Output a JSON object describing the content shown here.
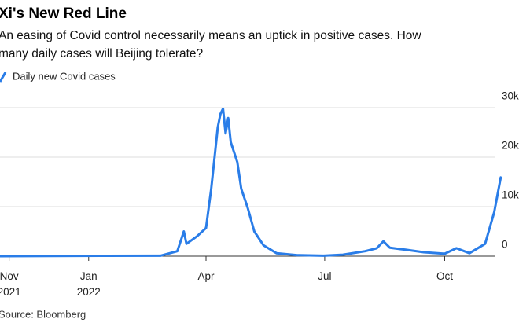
{
  "chart_data": {
    "type": "line",
    "title": "Xi's New Red Line",
    "subtitle": [
      "An easing of Covid control necessarily means an uptick in positive cases. How",
      "many daily cases will Beijing tolerate?"
    ],
    "source": "Source: Bloomberg",
    "x": [
      "2021-10-25",
      "2021-12-01",
      "2022-01-15",
      "2022-02-25",
      "2022-03-10",
      "2022-03-15",
      "2022-03-17",
      "2022-03-25",
      "2022-04-01",
      "2022-04-05",
      "2022-04-10",
      "2022-04-12",
      "2022-04-14",
      "2022-04-16",
      "2022-04-18",
      "2022-04-20",
      "2022-04-25",
      "2022-04-28",
      "2022-05-03",
      "2022-05-08",
      "2022-05-15",
      "2022-05-25",
      "2022-06-10",
      "2022-06-30",
      "2022-07-15",
      "2022-08-01",
      "2022-08-10",
      "2022-08-15",
      "2022-08-20",
      "2022-09-01",
      "2022-09-15",
      "2022-10-01",
      "2022-10-10",
      "2022-10-20",
      "2022-11-01",
      "2022-11-08",
      "2022-11-13"
    ],
    "series": [
      {
        "name": "Daily new Covid cases",
        "color": "#2a7de8",
        "values": [
          0,
          50,
          80,
          100,
          1000,
          5000,
          2500,
          4000,
          5700,
          13600,
          26000,
          28700,
          29800,
          24800,
          27900,
          23000,
          19000,
          13600,
          9700,
          5000,
          2200,
          600,
          200,
          100,
          300,
          1000,
          1600,
          3000,
          1700,
          1300,
          800,
          500,
          1600,
          600,
          2500,
          8900,
          15900
        ]
      }
    ],
    "xlim": [
      "2021-10-25",
      "2022-11-27"
    ],
    "xticks": [
      {
        "value": "2021-11-01",
        "label": "Nov 2021"
      },
      {
        "value": "2022-01-01",
        "label": "Jan 2022"
      },
      {
        "value": "2022-04-01",
        "label": "Apr"
      },
      {
        "value": "2022-07-01",
        "label": "Jul"
      },
      {
        "value": "2022-10-01",
        "label": "Oct"
      }
    ],
    "ylim": [
      0,
      30000
    ],
    "yticks": [
      0,
      {
        "value": 10000,
        "label": "10k"
      },
      {
        "value": 20000,
        "label": "20k"
      },
      {
        "value": 30000,
        "label": "30k"
      }
    ],
    "grid": true
  }
}
